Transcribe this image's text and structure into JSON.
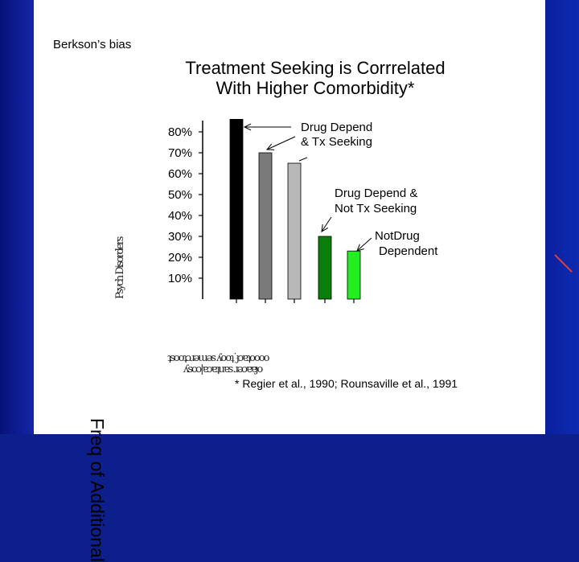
{
  "slide": {
    "corner_label": "Berkson’s bias",
    "title_line1": "Treatment Seeking is Corrrelated",
    "title_line2": "With Higher Comorbidity*",
    "citation": "* Regier et al., 1990; Rounsaville et al., 1991",
    "ylabel": "Freq of Additional",
    "garbled_vertical": "Psych Disorders",
    "garbled_horizontal1": "ʇsooʇɔɹǝɯǝs ʎooʇ˙ɟɔɐʇoooo",
    "garbled_horizontal2": "ʎsoɔ|ɐɔɐʇuɐs ɹǝɔɐɐɟo"
  },
  "colors": {
    "bar_black": "#000000",
    "bar_gray": "#7a7a7a",
    "bar_lightgray": "#b8b8b8",
    "bar_darkgreen": "#0b7d0b",
    "bar_green": "#22ee22"
  },
  "chart_data": {
    "type": "bar",
    "title": "Treatment Seeking is Corrrelated With Higher Comorbidity*",
    "xlabel": "",
    "ylabel": "Freq of Additional",
    "ylim": [
      0,
      90
    ],
    "yticks": [
      "10%",
      "20%",
      "30%",
      "40%",
      "50%",
      "60%",
      "70%",
      "80%"
    ],
    "ytick_values": [
      10,
      20,
      30,
      40,
      50,
      60,
      70,
      80
    ],
    "values": [
      86,
      70,
      65,
      30,
      23
    ],
    "bar_colors": [
      "#000000",
      "#7a7a7a",
      "#b8b8b8",
      "#0b7d0b",
      "#22ee22"
    ],
    "annotations": [
      {
        "line1": "Drug Depend",
        "line2": "& Tx Seeking"
      },
      {
        "line1": "Drug Depend &",
        "line2": "Not Tx Seeking"
      },
      {
        "line1": "NotDrug",
        "line2": "Dependent"
      }
    ]
  }
}
